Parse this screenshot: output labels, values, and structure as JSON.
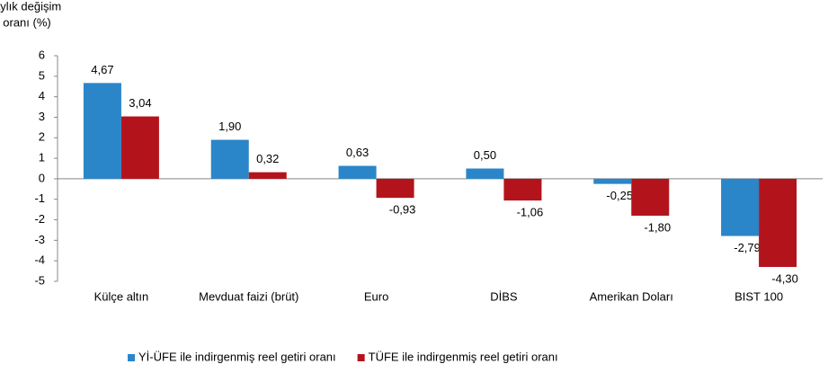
{
  "chart_data": {
    "type": "bar",
    "y_label": [
      "Aylık değişim",
      "oranı (%)"
    ],
    "categories": [
      "Külçe altın",
      "Mevduat faizi (brüt)",
      "Euro",
      "DİBS",
      "Amerikan Doları",
      "BIST 100"
    ],
    "series": [
      {
        "name": "Yİ-ÜFE ile indirgenmiş reel getiri oranı",
        "color": "#2b85c9",
        "values": [
          4.67,
          1.9,
          0.63,
          0.5,
          -0.25,
          -2.79
        ],
        "value_labels": [
          "4,67",
          "1,90",
          "0,63",
          "0,50",
          "-0,25",
          "-2,79"
        ]
      },
      {
        "name": "TÜFE ile indirgenmiş reel getiri oranı",
        "color": "#b3141c",
        "values": [
          3.04,
          0.32,
          -0.93,
          -1.06,
          -1.8,
          -4.3
        ],
        "value_labels": [
          "3,04",
          "0,32",
          "-0,93",
          "-1,06",
          "-1,80",
          "-4,30"
        ]
      }
    ],
    "ylim": [
      -5,
      6
    ],
    "yticks": [
      -5,
      -4,
      -3,
      -2,
      -1,
      0,
      1,
      2,
      3,
      4,
      5,
      6
    ],
    "grid": false,
    "legend": "bottom"
  }
}
